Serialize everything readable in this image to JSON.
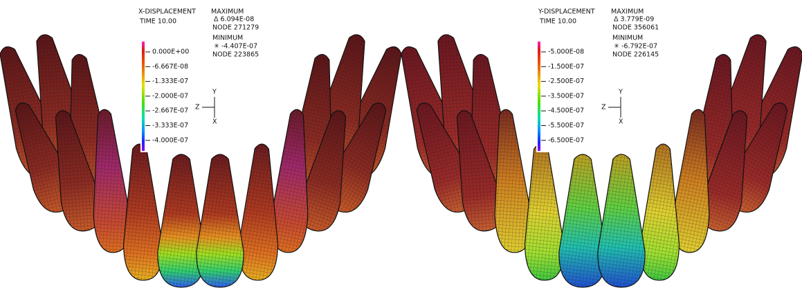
{
  "panels": [
    {
      "title": "X-DISPLACEMENT",
      "time": "TIME 10.00",
      "max_label": "MAXIMUM",
      "max_value": "Δ 6.094E-08",
      "max_node": "NODE 271279",
      "min_label": "MINIMUM",
      "min_value": "✳ -4.407E-07",
      "min_node": "NODE 223865",
      "scale": [
        "0.000E+00",
        "-6.667E-08",
        "-1.333E-07",
        "-2.000E-07",
        "-2.667E-07",
        "-3.333E-07",
        "-4.000E-07"
      ],
      "axes": {
        "y": "Y",
        "z": "Z",
        "x": "X"
      }
    },
    {
      "title": "Y-DISPLACEMENT",
      "time": "TIME 10.00",
      "max_label": "MAXIMUM",
      "max_value": "Δ 3.779E-09",
      "max_node": "NODE 356061",
      "min_label": "MINIMUM",
      "min_value": "✳ -6.792E-07",
      "min_node": "NODE 226145",
      "scale": [
        "-5.000E-08",
        "-1.500E-07",
        "-2.500E-07",
        "-3.500E-07",
        "-4.500E-07",
        "-5.500E-07",
        "-6.500E-07"
      ],
      "axes": {
        "y": "Y",
        "z": "Z",
        "x": "X"
      }
    }
  ]
}
